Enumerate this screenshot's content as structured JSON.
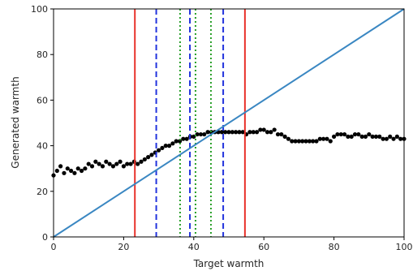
{
  "chart_data": {
    "type": "scatter",
    "title": "",
    "xlabel": "Target warmth",
    "ylabel": "Generated warmth",
    "xlim": [
      0,
      100
    ],
    "ylim": [
      0,
      100
    ],
    "xticks": [
      0,
      20,
      40,
      60,
      80,
      100
    ],
    "yticks": [
      0,
      20,
      40,
      60,
      80,
      100
    ],
    "grid": false,
    "point_color": "#000000",
    "diagonal": {
      "x": [
        0,
        100
      ],
      "y": [
        0,
        100
      ],
      "color": "#3a87c2"
    },
    "vertical_lines": [
      {
        "x": 23.2,
        "color": "#e8312a",
        "style": "solid"
      },
      {
        "x": 54.6,
        "color": "#e8312a",
        "style": "solid"
      },
      {
        "x": 29.3,
        "color": "#2233dd",
        "style": "dashed"
      },
      {
        "x": 38.9,
        "color": "#2233dd",
        "style": "dashed"
      },
      {
        "x": 48.4,
        "color": "#2233dd",
        "style": "dashed"
      },
      {
        "x": 36.1,
        "color": "#2aa02a",
        "style": "dotted"
      },
      {
        "x": 40.5,
        "color": "#2aa02a",
        "style": "dotted"
      },
      {
        "x": 44.9,
        "color": "#2aa02a",
        "style": "dotted"
      }
    ],
    "series": [
      {
        "x": [
          0,
          1,
          2,
          3,
          4,
          5,
          6,
          7,
          8,
          9,
          10,
          11,
          12,
          13,
          14,
          15,
          16,
          17,
          18,
          19,
          20,
          21,
          22,
          23,
          24,
          25,
          26,
          27,
          28,
          29,
          30,
          31,
          32,
          33,
          34,
          35,
          36,
          37,
          38,
          39,
          40,
          41,
          42,
          43,
          44,
          45,
          46,
          47,
          48,
          49,
          50,
          51,
          52,
          53,
          54,
          55,
          56,
          57,
          58,
          59,
          60,
          61,
          62,
          63,
          64,
          65,
          66,
          67,
          68,
          69,
          70,
          71,
          72,
          73,
          74,
          75,
          76,
          77,
          78,
          79,
          80,
          81,
          82,
          83,
          84,
          85,
          86,
          87,
          88,
          89,
          90,
          91,
          92,
          93,
          94,
          95,
          96,
          97,
          98,
          99,
          100
        ],
        "y": [
          27,
          29,
          31,
          28,
          30,
          29,
          28,
          30,
          29,
          30,
          32,
          31,
          33,
          32,
          31,
          33,
          32,
          31,
          32,
          33,
          31,
          32,
          32,
          33,
          32,
          33,
          34,
          35,
          36,
          37,
          38,
          39,
          40,
          40,
          41,
          42,
          42,
          43,
          43,
          44,
          44,
          45,
          45,
          45,
          46,
          46,
          46,
          46,
          46,
          46,
          46,
          46,
          46,
          46,
          46,
          45,
          46,
          46,
          46,
          47,
          47,
          46,
          46,
          47,
          45,
          45,
          44,
          43,
          42,
          42,
          42,
          42,
          42,
          42,
          42,
          42,
          43,
          43,
          43,
          42,
          44,
          45,
          45,
          45,
          44,
          44,
          45,
          45,
          44,
          44,
          45,
          44,
          44,
          44,
          43,
          43,
          44,
          43,
          44,
          43,
          43
        ]
      }
    ]
  }
}
